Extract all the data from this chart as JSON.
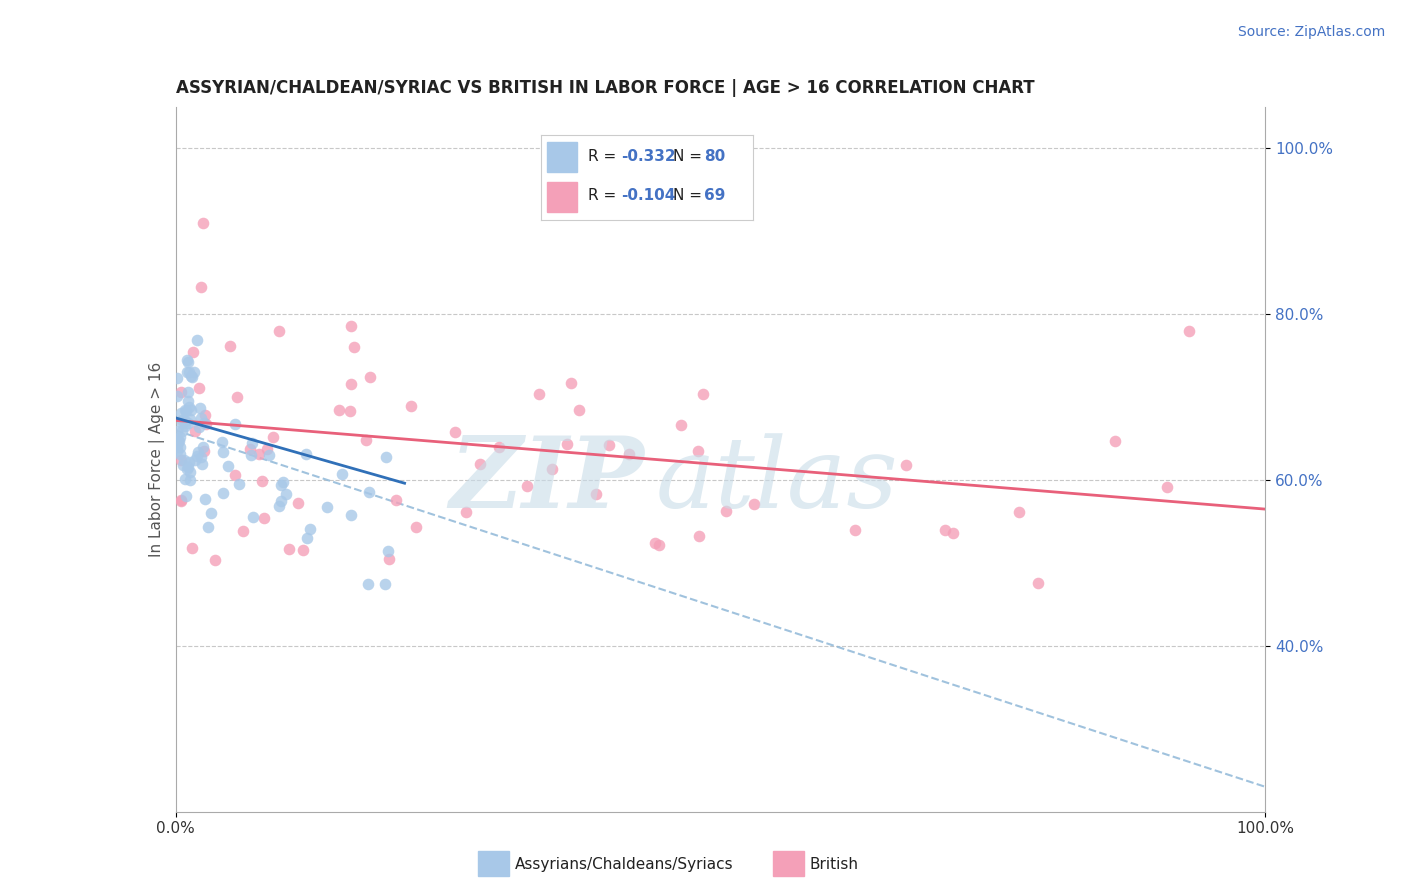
{
  "title": "ASSYRIAN/CHALDEAN/SYRIAC VS BRITISH IN LABOR FORCE | AGE > 16 CORRELATION CHART",
  "source_text": "Source: ZipAtlas.com",
  "ylabel": "In Labor Force | Age > 16",
  "xlim": [
    0.0,
    1.0
  ],
  "ylim": [
    0.2,
    1.05
  ],
  "x_tick_labels": [
    "0.0%",
    "100.0%"
  ],
  "y_tick_right_values": [
    0.4,
    0.6,
    0.8,
    1.0
  ],
  "y_tick_right_labels": [
    "40.0%",
    "60.0%",
    "80.0%",
    "100.0%"
  ],
  "assyrian_R": -0.332,
  "assyrian_N": 80,
  "british_R": -0.104,
  "british_N": 69,
  "assyrian_color": "#a8c8e8",
  "british_color": "#f4a0b8",
  "assyrian_line_color": "#3070b8",
  "british_line_color": "#e8607a",
  "dashed_line_color": "#90b8d8",
  "background_color": "#ffffff",
  "grid_color": "#c8c8c8",
  "watermark_color": "#c8dce8",
  "legend_label1": "Assyrians/Chaldeans/Syriacs",
  "legend_label2": "British",
  "legend_box_color1": "#a8c8e8",
  "legend_box_color2": "#f4a0b8",
  "title_color": "#222222",
  "source_color": "#4472c4",
  "axis_label_color": "#555555",
  "right_tick_color": "#4472c4"
}
